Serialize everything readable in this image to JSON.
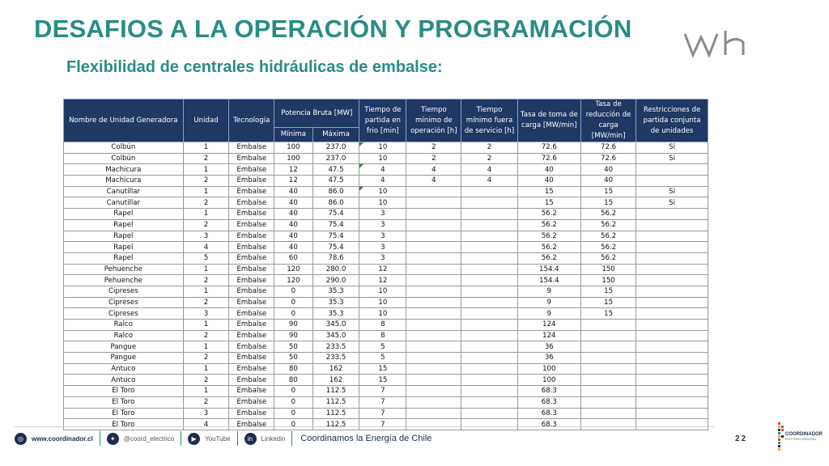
{
  "title": "DESAFIOS A LA OPERACIÓN Y PROGRAMACIÓN",
  "subtitle": "Flexibilidad de centrales hidráulicas de embalse:",
  "logo_text": "Wh",
  "colors": {
    "title": "#2a8c84",
    "header_bg": "#1f3864",
    "flag": "#2e8b2e",
    "footer_icon": "#1d2c4f"
  },
  "table": {
    "headers": {
      "nombre": "Nombre de Unidad Generadora",
      "unidad": "Unidad",
      "tecnologia": "Tecnología",
      "potencia": "Potencia Bruta [MW]",
      "minima": "Mínima",
      "maxima": "Máxima",
      "tiempo_partida": "Tiempo de partida en frio [min]",
      "tiempo_min_op": "Tiempo mínimo de operación [h]",
      "tiempo_min_fuera": "Tiempo mínimo fuera de servicio [h]",
      "tasa_toma": "Tasa de toma de carga [MW/min]",
      "tasa_reduccion": "Tasa de reducción de carga [MW/min]",
      "restricciones": "Restricciones de partida conjunta de unidades"
    },
    "rows": [
      [
        "Colbún",
        "1",
        "Embalse",
        "100",
        "237.0",
        "10",
        "2",
        "2",
        "72.6",
        "72.6",
        "Si"
      ],
      [
        "Colbún",
        "2",
        "Embalse",
        "100",
        "237.0",
        "10",
        "2",
        "2",
        "72.6",
        "72.6",
        "Si"
      ],
      [
        "Machicura",
        "1",
        "Embalse",
        "12",
        "47.5",
        "4",
        "4",
        "4",
        "40",
        "40",
        ""
      ],
      [
        "Machicura",
        "2",
        "Embalse",
        "12",
        "47.5",
        "4",
        "4",
        "4",
        "40",
        "40",
        ""
      ],
      [
        "Canutillar",
        "1",
        "Embalse",
        "40",
        "86.0",
        "10",
        "",
        "",
        "15",
        "15",
        "Si"
      ],
      [
        "Canutillar",
        "2",
        "Embalse",
        "40",
        "86.0",
        "10",
        "",
        "",
        "15",
        "15",
        "Si"
      ],
      [
        "Rapel",
        "1",
        "Embalse",
        "40",
        "75.4",
        "3",
        "",
        "",
        "56.2",
        "56.2",
        ""
      ],
      [
        "Rapel",
        "2",
        "Embalse",
        "40",
        "75.4",
        "3",
        "",
        "",
        "56.2",
        "56.2",
        ""
      ],
      [
        "Rapel",
        "3",
        "Embalse",
        "40",
        "75.4",
        "3",
        "",
        "",
        "56.2",
        "56.2",
        ""
      ],
      [
        "Rapel",
        "4",
        "Embalse",
        "40",
        "75.4",
        "3",
        "",
        "",
        "56.2",
        "56.2",
        ""
      ],
      [
        "Rapel",
        "5",
        "Embalse",
        "60",
        "78.6",
        "3",
        "",
        "",
        "56.2",
        "56.2",
        ""
      ],
      [
        "Pehuenche",
        "1",
        "Embalse",
        "120",
        "280.0",
        "12",
        "",
        "",
        "154.4",
        "150",
        ""
      ],
      [
        "Pehuenche",
        "2",
        "Embalse",
        "120",
        "290.0",
        "12",
        "",
        "",
        "154.4",
        "150",
        ""
      ],
      [
        "Cipreses",
        "1",
        "Embalse",
        "0",
        "35.3",
        "10",
        "",
        "",
        "9",
        "15",
        ""
      ],
      [
        "Cipreses",
        "2",
        "Embalse",
        "0",
        "35.3",
        "10",
        "",
        "",
        "9",
        "15",
        ""
      ],
      [
        "Cipreses",
        "3",
        "Embalse",
        "0",
        "35.3",
        "10",
        "",
        "",
        "9",
        "15",
        ""
      ],
      [
        "Ralco",
        "1",
        "Embalse",
        "90",
        "345.0",
        "8",
        "",
        "",
        "124",
        "",
        ""
      ],
      [
        "Ralco",
        "2",
        "Embalse",
        "90",
        "345.0",
        "8",
        "",
        "",
        "124",
        "",
        ""
      ],
      [
        "Pangue",
        "1",
        "Embalse",
        "50",
        "233.5",
        "5",
        "",
        "",
        "36",
        "",
        ""
      ],
      [
        "Pangue",
        "2",
        "Embalse",
        "50",
        "233.5",
        "5",
        "",
        "",
        "36",
        "",
        ""
      ],
      [
        "Antuco",
        "1",
        "Embalse",
        "80",
        "162",
        "15",
        "",
        "",
        "100",
        "",
        ""
      ],
      [
        "Antuco",
        "2",
        "Embalse",
        "80",
        "162",
        "15",
        "",
        "",
        "100",
        "",
        ""
      ],
      [
        "El Toro",
        "1",
        "Embalse",
        "0",
        "112.5",
        "7",
        "",
        "",
        "68.3",
        "",
        ""
      ],
      [
        "El Toro",
        "2",
        "Embalse",
        "0",
        "112.5",
        "7",
        "",
        "",
        "68.3",
        "",
        ""
      ],
      [
        "El Toro",
        "3",
        "Embalse",
        "0",
        "112.5",
        "7",
        "",
        "",
        "68.3",
        "",
        ""
      ],
      [
        "El Toro",
        "4",
        "Embalse",
        "0",
        "112.5",
        "7",
        "",
        "",
        "68.3",
        "",
        ""
      ]
    ],
    "flagged_rows": [
      0,
      2,
      4
    ]
  },
  "footer": {
    "website": "www.coordinador.cl",
    "twitter": "@coord_electrico",
    "youtube": "YouTube",
    "linkedin": "Linkedin",
    "slogan": "Coordinamos la Energía de Chile",
    "page_number": "22",
    "logo_title": "COORDINADOR",
    "logo_sub": "ELÉCTRICO NACIONAL",
    "icons": [
      "globe-icon",
      "twitter-icon",
      "youtube-icon",
      "linkedin-icon"
    ]
  }
}
